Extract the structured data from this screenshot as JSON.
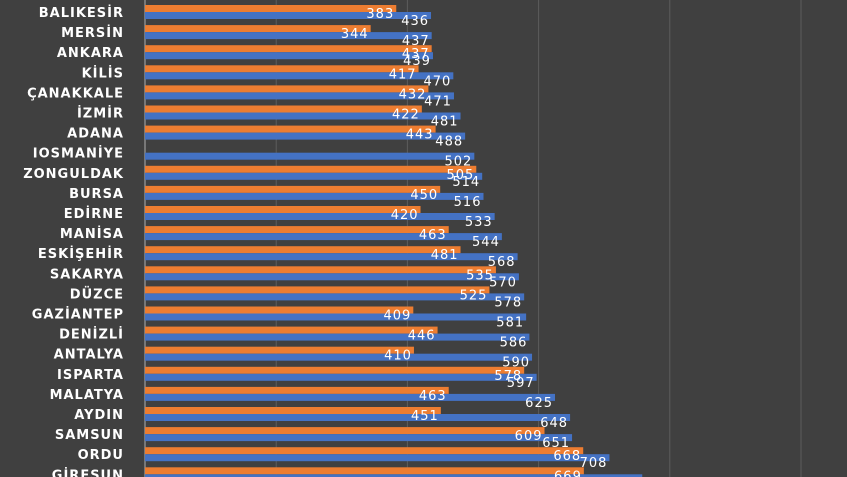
{
  "chart_data": {
    "type": "bar",
    "orientation": "horizontal",
    "categories": [
      "BALIKESİR",
      "MERSİN",
      "ANKARA",
      "KİLİS",
      "ÇANAKKALE",
      "İZMİR",
      "ADANA",
      "IOSMANİYE",
      "ZONGULDAK",
      "BURSA",
      "EDİRNE",
      "MANİSA",
      "ESKİŞEHİR",
      "SAKARYA",
      "DÜZCE",
      "GAZİANTEP",
      "DENİZLİ",
      "ANTALYA",
      "ISPARTA",
      "MALATYA",
      "AYDIN",
      "SAMSUN",
      "ORDU",
      "GİRESUN"
    ],
    "series": [
      {
        "color": "#ED7D31",
        "values": [
          383,
          344,
          437,
          417,
          432,
          422,
          443,
          null,
          505,
          450,
          420,
          463,
          481,
          535,
          525,
          409,
          446,
          410,
          578,
          463,
          451,
          609,
          668,
          669
        ]
      },
      {
        "color": "#4472C4",
        "values": [
          436,
          437,
          439,
          470,
          471,
          481,
          488,
          502,
          514,
          516,
          533,
          544,
          568,
          570,
          578,
          581,
          586,
          590,
          597,
          625,
          648,
          651,
          708,
          758
        ]
      }
    ],
    "xlim": [
      0,
      1000
    ],
    "grid": true,
    "legend": "none"
  }
}
